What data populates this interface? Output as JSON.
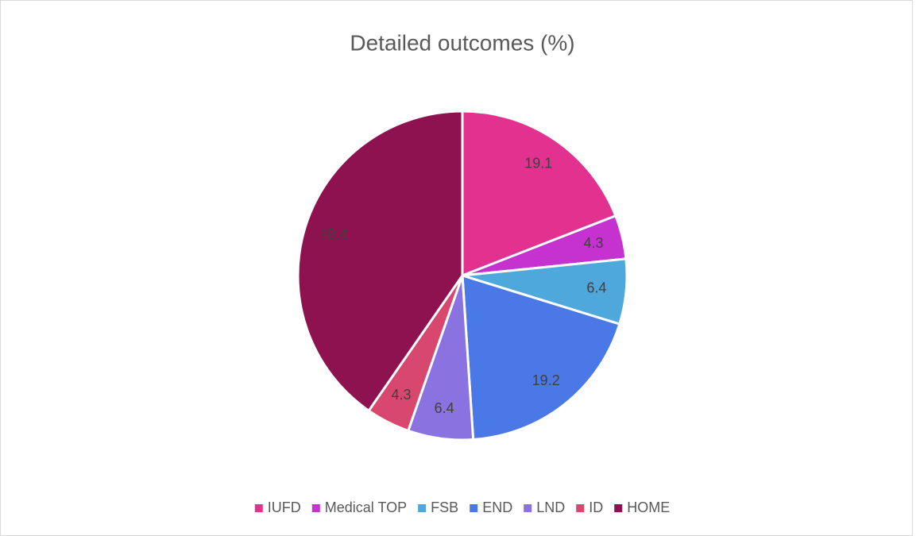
{
  "chart_data": {
    "type": "pie",
    "title": "Detailed outcomes (%)",
    "categories": [
      "IUFD",
      "Medical TOP",
      "FSB",
      "END",
      "LND",
      "ID",
      "HOME"
    ],
    "values": [
      19.1,
      4.3,
      6.4,
      19.2,
      6.4,
      4.3,
      40.4
    ],
    "colors": [
      "#e2318f",
      "#c532cf",
      "#4fa8dc",
      "#4a78e6",
      "#8a72e0",
      "#d8486e",
      "#8e1150"
    ],
    "legend": "bottom"
  }
}
